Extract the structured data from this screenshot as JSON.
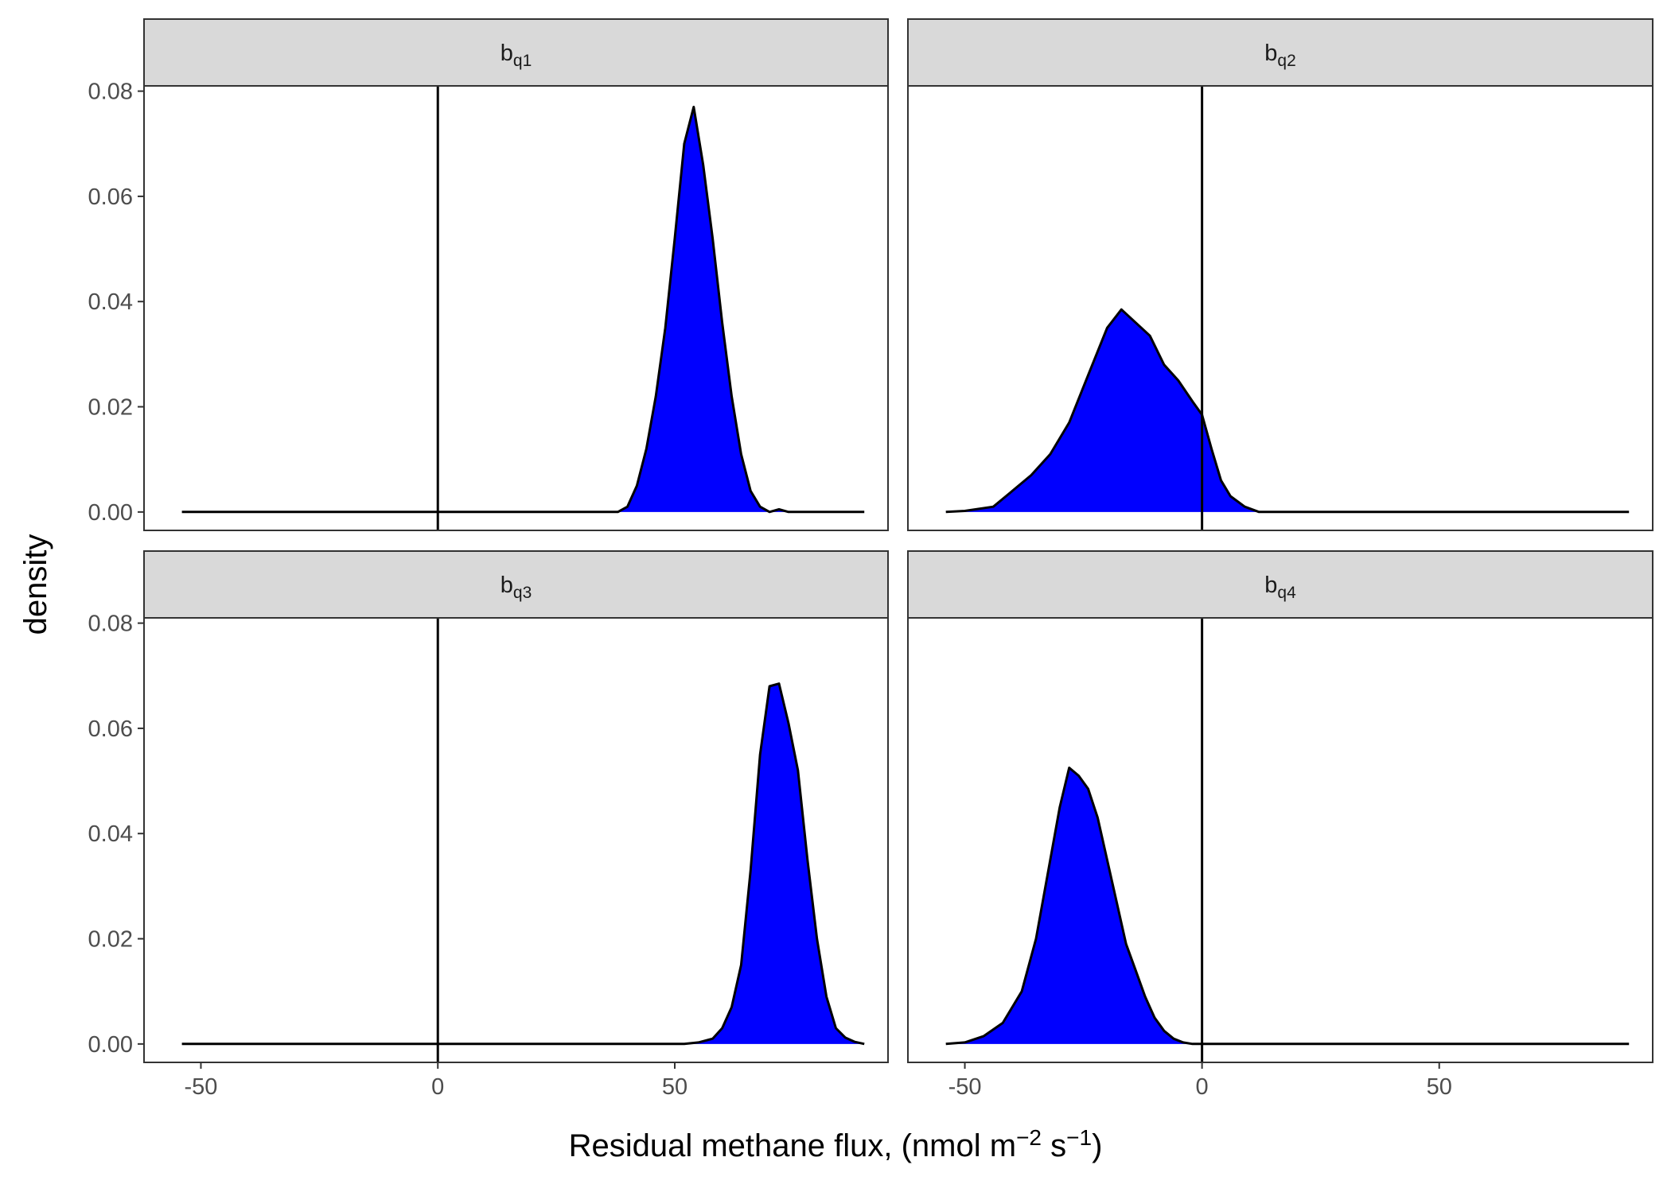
{
  "chart_data": {
    "type": "area",
    "title": "",
    "xlabel": "Residual methane flux, (nmol m−2 s−1)",
    "xlabel_parts": {
      "main": "Residual methane flux, (nmol m",
      "exp1": "−2",
      "mid": " s",
      "exp2": "−1",
      "end": ")"
    },
    "ylabel": "density",
    "xlim": [
      -62,
      95
    ],
    "ylim": [
      -0.0035,
      0.081
    ],
    "x_ticks": [
      -50,
      0,
      50
    ],
    "x_tick_labels": [
      "-50",
      "0",
      "50"
    ],
    "y_ticks": [
      0,
      0.02,
      0.04,
      0.06,
      0.08
    ],
    "y_tick_labels": [
      "0.00",
      "0.02",
      "0.04",
      "0.06",
      "0.08"
    ],
    "vline_x": 0,
    "fill_color": "#0000ff",
    "line_color": "#000000",
    "strip_color": "#d9d9d9",
    "grid": false,
    "facets": [
      {
        "base": "b",
        "sub": "q1",
        "label": "bq1",
        "x": [
          -54,
          38,
          40,
          42,
          44,
          46,
          48,
          50,
          52,
          54,
          56,
          58,
          60,
          62,
          64,
          66,
          68,
          70,
          72,
          74,
          90
        ],
        "y": [
          0,
          0,
          0.001,
          0.005,
          0.012,
          0.022,
          0.035,
          0.052,
          0.07,
          0.077,
          0.066,
          0.052,
          0.036,
          0.022,
          0.011,
          0.004,
          0.001,
          0,
          0.0005,
          0,
          0
        ]
      },
      {
        "base": "b",
        "sub": "q2",
        "label": "bq2",
        "x": [
          -54,
          -50,
          -44,
          -40,
          -36,
          -32,
          -28,
          -24,
          -20,
          -17,
          -14,
          -11,
          -8,
          -5,
          -2,
          0,
          2,
          4,
          6,
          9,
          12,
          15,
          90
        ],
        "y": [
          0,
          0.0002,
          0.001,
          0.004,
          0.007,
          0.011,
          0.017,
          0.026,
          0.035,
          0.0385,
          0.036,
          0.0335,
          0.028,
          0.025,
          0.021,
          0.0185,
          0.012,
          0.006,
          0.003,
          0.001,
          0,
          0,
          0
        ]
      },
      {
        "base": "b",
        "sub": "q3",
        "label": "bq3",
        "x": [
          -54,
          52,
          55,
          58,
          60,
          62,
          64,
          66,
          68,
          70,
          72,
          74,
          76,
          78,
          80,
          82,
          84,
          86,
          88,
          90
        ],
        "y": [
          0,
          0,
          0.0003,
          0.001,
          0.003,
          0.007,
          0.015,
          0.033,
          0.055,
          0.068,
          0.0685,
          0.061,
          0.052,
          0.035,
          0.02,
          0.009,
          0.003,
          0.0012,
          0.0004,
          0
        ]
      },
      {
        "base": "b",
        "sub": "q4",
        "label": "bq4",
        "x": [
          -54,
          -50,
          -46,
          -42,
          -38,
          -35,
          -32,
          -30,
          -28,
          -26,
          -24,
          -22,
          -20,
          -18,
          -16,
          -14,
          -12,
          -10,
          -8,
          -6,
          -4,
          -2,
          0,
          90
        ],
        "y": [
          0,
          0.0003,
          0.0015,
          0.004,
          0.01,
          0.02,
          0.035,
          0.045,
          0.0525,
          0.051,
          0.0485,
          0.043,
          0.035,
          0.027,
          0.019,
          0.014,
          0.009,
          0.005,
          0.0025,
          0.001,
          0.0003,
          0,
          0,
          0
        ]
      }
    ]
  }
}
